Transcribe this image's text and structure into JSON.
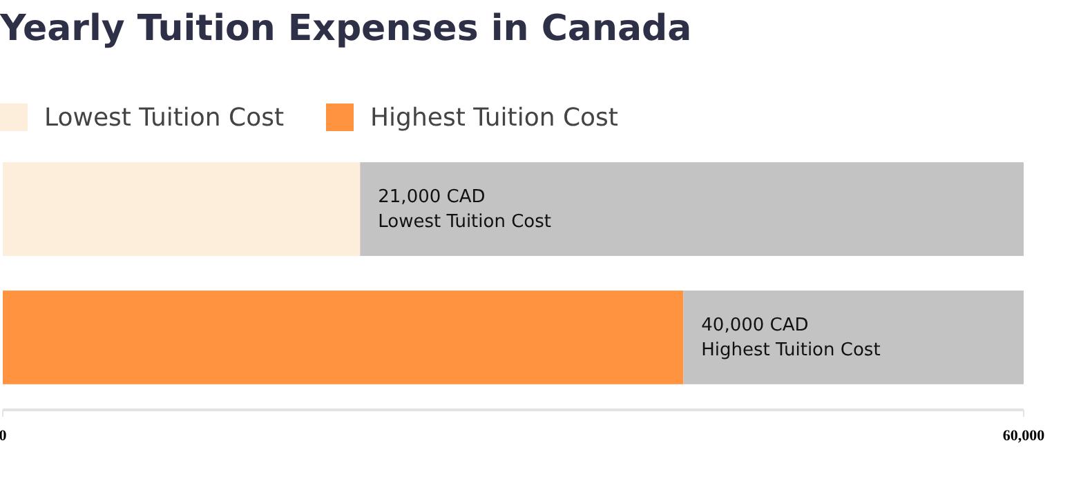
{
  "chart_data": {
    "type": "bar",
    "title": "Yearly Tuition Expenses in Canada",
    "orientation": "horizontal",
    "stacked": true,
    "categories": [
      null,
      null
    ],
    "series": [
      {
        "name": "Lowest Tuition Cost",
        "color": "#fdeedb",
        "values": [
          21000,
          null
        ],
        "value_labels": [
          "21,000 CAD\nLowest Tuition Cost",
          null
        ]
      },
      {
        "name": "Highest Tuition Cost",
        "color": "#ff9340",
        "values": [
          null,
          40000
        ],
        "value_labels": [
          null,
          "40,000 CAD\nHighest Tuition Cost"
        ]
      },
      {
        "color": "#c3c3c3",
        "values": [
          39000,
          20000
        ]
      }
    ],
    "xlim": [
      0,
      60000
    ],
    "xticks": [
      0,
      {
        "value": 60000,
        "label": "60,000"
      }
    ],
    "tick_labels": "x",
    "legend": "top left"
  }
}
